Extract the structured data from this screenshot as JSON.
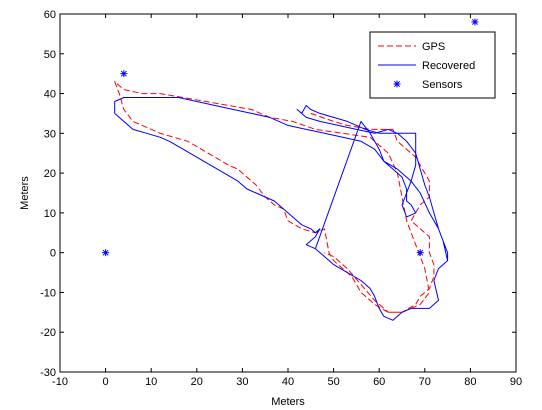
{
  "chart_data": {
    "type": "line",
    "title": "",
    "xlabel": "Meters",
    "ylabel": "Meters",
    "xlim": [
      -10,
      90
    ],
    "ylim": [
      -30,
      60
    ],
    "xticks": [
      -10,
      0,
      10,
      20,
      30,
      40,
      50,
      60,
      70,
      80,
      90
    ],
    "yticks": [
      -30,
      -20,
      -10,
      0,
      10,
      20,
      30,
      40,
      50,
      60
    ],
    "grid": false,
    "legend": "top-right",
    "series": [
      {
        "name": "GPS",
        "style": "dashed",
        "color": "#ff0000",
        "points": [
          [
            45,
            35
          ],
          [
            50,
            33
          ],
          [
            53,
            32
          ],
          [
            58,
            31
          ],
          [
            63,
            31
          ],
          [
            64,
            28
          ],
          [
            66,
            26
          ],
          [
            68,
            24
          ],
          [
            69,
            22
          ],
          [
            70,
            20
          ],
          [
            71,
            18
          ],
          [
            71,
            14
          ],
          [
            69,
            12
          ],
          [
            67,
            8
          ],
          [
            69,
            6
          ],
          [
            71,
            4
          ],
          [
            71,
            0
          ],
          [
            72,
            -3
          ],
          [
            72,
            -6
          ],
          [
            71,
            -9
          ],
          [
            69,
            -11
          ],
          [
            68,
            -13
          ],
          [
            65,
            -15
          ],
          [
            62,
            -15
          ],
          [
            59,
            -13
          ],
          [
            56,
            -10
          ],
          [
            54,
            -6
          ],
          [
            52,
            -4
          ],
          [
            50,
            -2
          ],
          [
            49,
            0
          ],
          [
            48,
            6
          ],
          [
            46,
            5
          ],
          [
            43,
            6
          ],
          [
            40,
            8
          ],
          [
            39,
            11
          ],
          [
            37,
            12
          ],
          [
            35,
            14
          ],
          [
            33,
            17
          ],
          [
            31,
            19
          ],
          [
            29,
            21
          ],
          [
            27,
            22
          ],
          [
            24,
            24
          ],
          [
            21,
            26
          ],
          [
            18,
            28
          ],
          [
            15,
            29
          ],
          [
            12,
            30
          ],
          [
            8,
            32
          ],
          [
            6,
            33
          ],
          [
            4,
            36
          ],
          [
            3,
            40
          ],
          [
            2,
            43
          ],
          [
            4,
            41
          ],
          [
            8,
            40
          ],
          [
            12,
            40
          ],
          [
            17,
            39
          ],
          [
            22,
            38
          ],
          [
            27,
            37
          ],
          [
            32,
            36
          ],
          [
            36,
            34
          ],
          [
            41,
            33
          ],
          [
            46,
            31
          ],
          [
            52,
            30
          ],
          [
            58,
            29
          ],
          [
            62,
            25
          ],
          [
            64,
            20
          ],
          [
            65,
            14
          ],
          [
            66,
            8
          ],
          [
            68,
            2
          ],
          [
            70,
            -4
          ],
          [
            71,
            -10
          ],
          [
            69,
            -13
          ],
          [
            65,
            -15
          ],
          [
            62,
            -15
          ],
          [
            59,
            -12
          ],
          [
            56,
            -8
          ],
          [
            53,
            -4
          ],
          [
            50,
            -1
          ],
          [
            48,
            0
          ]
        ]
      },
      {
        "name": "Recovered",
        "style": "solid",
        "color": "#0000ff",
        "points": [
          [
            46,
            1
          ],
          [
            48,
            -1
          ],
          [
            50,
            -3
          ],
          [
            53,
            -5
          ],
          [
            56,
            -7
          ],
          [
            58,
            -9
          ],
          [
            59,
            -11
          ],
          [
            60,
            -14
          ],
          [
            61,
            -16
          ],
          [
            63,
            -17
          ],
          [
            65,
            -15
          ],
          [
            67,
            -14
          ],
          [
            69,
            -14
          ],
          [
            71,
            -14
          ],
          [
            72,
            -13
          ],
          [
            73,
            -12
          ],
          [
            72,
            -7
          ],
          [
            73,
            -4
          ],
          [
            75,
            -2
          ],
          [
            74,
            3
          ],
          [
            73,
            6
          ],
          [
            71,
            10
          ],
          [
            69,
            15
          ],
          [
            67,
            18
          ],
          [
            64,
            21
          ],
          [
            61,
            23
          ],
          [
            59,
            26
          ],
          [
            56,
            28
          ],
          [
            52,
            29
          ],
          [
            48,
            30
          ],
          [
            44,
            31
          ],
          [
            40,
            32
          ],
          [
            36,
            34
          ],
          [
            32,
            35
          ],
          [
            28,
            36
          ],
          [
            24,
            37
          ],
          [
            20,
            38
          ],
          [
            16,
            39
          ],
          [
            12,
            39
          ],
          [
            8,
            39
          ],
          [
            4,
            39
          ],
          [
            2,
            38
          ],
          [
            2,
            35
          ],
          [
            4,
            33
          ],
          [
            6,
            31
          ],
          [
            9,
            30
          ],
          [
            12,
            29
          ],
          [
            14,
            28
          ],
          [
            17,
            26
          ],
          [
            20,
            24
          ],
          [
            23,
            22
          ],
          [
            26,
            20
          ],
          [
            29,
            18
          ],
          [
            31,
            16
          ],
          [
            33,
            15
          ],
          [
            35,
            14
          ],
          [
            37,
            13
          ],
          [
            39,
            11
          ],
          [
            41,
            9
          ],
          [
            43,
            7
          ],
          [
            45,
            6
          ],
          [
            46,
            5
          ],
          [
            47,
            6
          ],
          [
            46,
            4
          ],
          [
            45,
            3
          ],
          [
            44,
            2
          ],
          [
            46,
            1
          ],
          [
            56,
            33
          ],
          [
            58,
            30
          ],
          [
            60,
            26
          ],
          [
            61,
            23
          ],
          [
            63,
            21
          ],
          [
            65,
            19
          ],
          [
            66,
            16
          ],
          [
            66,
            13
          ],
          [
            67,
            12
          ],
          [
            68,
            10
          ],
          [
            66,
            9
          ],
          [
            65,
            12
          ],
          [
            66,
            15
          ],
          [
            67,
            18
          ],
          [
            68,
            22
          ],
          [
            68,
            26
          ],
          [
            68,
            30
          ],
          [
            66,
            30
          ],
          [
            63,
            30
          ],
          [
            60,
            30
          ],
          [
            57,
            31
          ],
          [
            53,
            33
          ],
          [
            50,
            34
          ],
          [
            47,
            35
          ],
          [
            45,
            36
          ],
          [
            44,
            37
          ],
          [
            43,
            35
          ],
          [
            42,
            36
          ],
          [
            44,
            34
          ],
          [
            47,
            33
          ],
          [
            51,
            32
          ],
          [
            55,
            31
          ],
          [
            59,
            30
          ],
          [
            62,
            31
          ],
          [
            64,
            30
          ],
          [
            66,
            28
          ],
          [
            68,
            25
          ],
          [
            69,
            21
          ],
          [
            70,
            17
          ],
          [
            71,
            14
          ],
          [
            72,
            10
          ],
          [
            73,
            6
          ],
          [
            74,
            3
          ],
          [
            75,
            0
          ],
          [
            75,
            -2
          ]
        ]
      },
      {
        "name": "Sensors",
        "style": "markers",
        "marker": "*",
        "color": "#0000ff",
        "points": [
          [
            0,
            0
          ],
          [
            4,
            45
          ],
          [
            69,
            0
          ],
          [
            81,
            58
          ]
        ]
      }
    ]
  }
}
